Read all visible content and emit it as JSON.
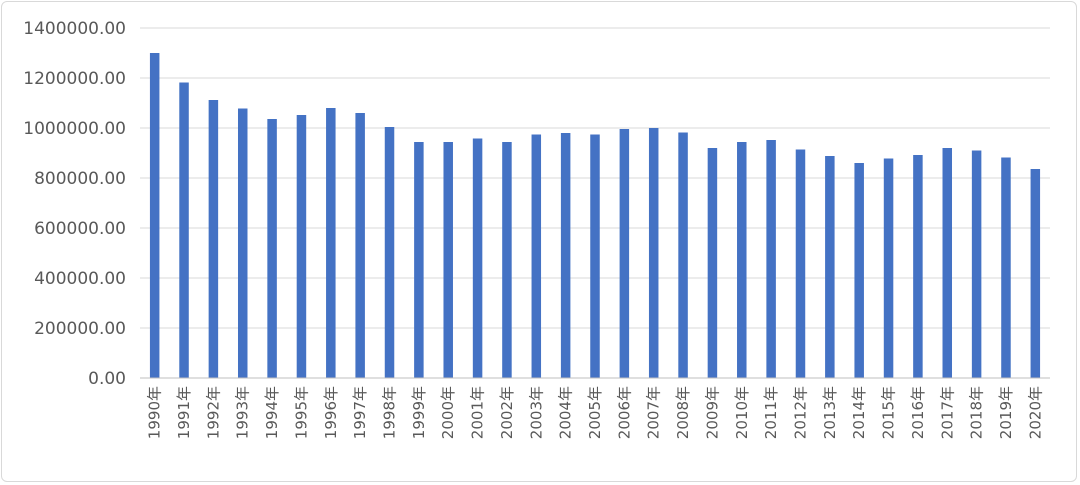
{
  "chart_data": {
    "type": "bar",
    "title": "",
    "xlabel": "",
    "ylabel": "",
    "ylim": [
      0,
      1400000
    ],
    "yticks": [
      "0.00",
      "200000.00",
      "400000.00",
      "600000.00",
      "800000.00",
      "1000000.00",
      "1200000.00",
      "1400000.00"
    ],
    "grid": true,
    "bar_color": "#4472C4",
    "categories": [
      "1990年",
      "1991年",
      "1992年",
      "1993年",
      "1994年",
      "1995年",
      "1996年",
      "1997年",
      "1998年",
      "1999年",
      "2000年",
      "2001年",
      "2002年",
      "2003年",
      "2004年",
      "2005年",
      "2006年",
      "2007年",
      "2008年",
      "2009年",
      "2010年",
      "2011年",
      "2012年",
      "2013年",
      "2014年",
      "2015年",
      "2016年",
      "2017年",
      "2018年",
      "2019年",
      "2020年"
    ],
    "values": [
      1300000,
      1182000,
      1112000,
      1078000,
      1036000,
      1052000,
      1080000,
      1060000,
      1004000,
      944000,
      944000,
      958000,
      944000,
      974000,
      980000,
      974000,
      996000,
      1000000,
      982000,
      920000,
      944000,
      952000,
      914000,
      888000,
      860000,
      878000,
      892000,
      920000,
      910000,
      882000,
      836000
    ]
  }
}
